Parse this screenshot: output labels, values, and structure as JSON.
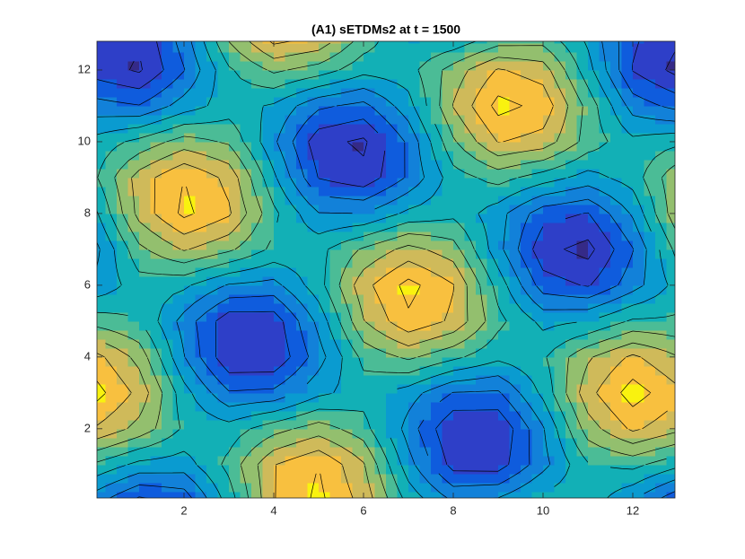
{
  "chart_data": {
    "type": "contour",
    "title": "(A1) sETDMs2 at t = 1500",
    "xlim": [
      0.06,
      12.94
    ],
    "ylim": [
      0.07,
      12.8
    ],
    "xticks": [
      2,
      4,
      6,
      8,
      10,
      12
    ],
    "yticks": [
      2,
      4,
      6,
      8,
      10,
      12
    ],
    "x": [
      0,
      1,
      2,
      3,
      4,
      5,
      6,
      7,
      8,
      9,
      10,
      11,
      12,
      13
    ],
    "y": [
      0,
      1,
      2,
      3,
      4,
      5,
      6,
      7,
      8,
      9,
      10,
      11,
      12,
      13
    ],
    "z": [
      [
        -0.42,
        -0.76,
        -0.64,
        -0.01,
        0.69,
        0.95,
        0.63,
        0.04,
        -0.32,
        -0.26,
        -0.01,
        0.02,
        -0.3,
        -0.68
      ],
      [
        0.07,
        -0.16,
        -0.2,
        0.16,
        0.69,
        0.9,
        0.52,
        -0.22,
        -0.78,
        -0.8,
        -0.37,
        0.08,
        0.16,
        -0.05
      ],
      [
        0.69,
        0.43,
        0.07,
        -0.01,
        0.22,
        0.4,
        0.19,
        -0.39,
        -0.9,
        -0.89,
        -0.32,
        0.4,
        0.74,
        0.55
      ],
      [
        0.99,
        0.64,
        -0.02,
        -0.48,
        -0.45,
        -0.15,
        0.0,
        -0.2,
        -0.51,
        -0.53,
        -0.05,
        0.63,
        1.0,
        0.75
      ],
      [
        0.78,
        0.43,
        -0.29,
        -0.87,
        -0.88,
        -0.39,
        0.16,
        0.34,
        0.15,
        -0.05,
        0.07,
        0.47,
        0.74,
        0.51
      ],
      [
        0.22,
        0.1,
        -0.38,
        -0.83,
        -0.82,
        -0.24,
        0.49,
        0.86,
        0.66,
        0.16,
        -0.16,
        -0.1,
        0.13,
        0.13
      ],
      [
        -0.27,
        0.01,
        -0.06,
        -0.32,
        -0.37,
        0.02,
        0.63,
        0.97,
        0.71,
        0.02,
        -0.6,
        -0.72,
        -0.39,
        -0.02
      ],
      [
        -0.38,
        0.25,
        0.52,
        0.34,
        0.05,
        0.04,
        0.33,
        0.57,
        0.39,
        -0.23,
        -0.84,
        -0.97,
        -0.51,
        0.18
      ],
      [
        -0.16,
        0.57,
        0.95,
        0.73,
        0.15,
        -0.29,
        -0.3,
        -0.05,
        0.05,
        -0.22,
        -0.62,
        -0.71,
        -0.27,
        0.46
      ],
      [
        0.06,
        0.59,
        0.9,
        0.64,
        -0.06,
        -0.71,
        -0.84,
        -0.47,
        0.01,
        0.18,
        0.0,
        -0.18,
        -0.01,
        0.47
      ],
      [
        -0.03,
        0.16,
        0.39,
        0.27,
        -0.26,
        -0.83,
        -0.94,
        -0.46,
        0.27,
        0.71,
        0.62,
        0.22,
        -0.05,
        0.05
      ],
      [
        -0.42,
        -0.49,
        -0.21,
        0.0,
        -0.13,
        -0.46,
        -0.56,
        -0.18,
        0.51,
        0.97,
        0.84,
        0.23,
        -0.39,
        -0.57
      ],
      [
        -0.79,
        -0.93,
        -0.51,
        0.07,
        0.34,
        0.21,
        -0.03,
        0.02,
        0.39,
        0.72,
        0.6,
        -0.02,
        -0.71,
        -0.97
      ],
      [
        -0.77,
        -0.87,
        -0.39,
        0.36,
        0.84,
        0.74,
        0.26,
        -0.13,
        -0.13,
        0.1,
        0.16,
        -0.16,
        -0.66,
        -0.86
      ]
    ],
    "levels": [
      -0.9,
      -0.7,
      -0.5,
      -0.3,
      -0.1,
      0.1,
      0.3,
      0.5,
      0.7,
      0.9
    ],
    "colormap": [
      "#352a87",
      "#2e3fc8",
      "#0f5cdd",
      "#1281d9",
      "#0a9bd0",
      "#12b0b6",
      "#4bbc96",
      "#93bf6e",
      "#cfba5a",
      "#f8c03f",
      "#f9f20f"
    ],
    "line_color": "#000000"
  }
}
